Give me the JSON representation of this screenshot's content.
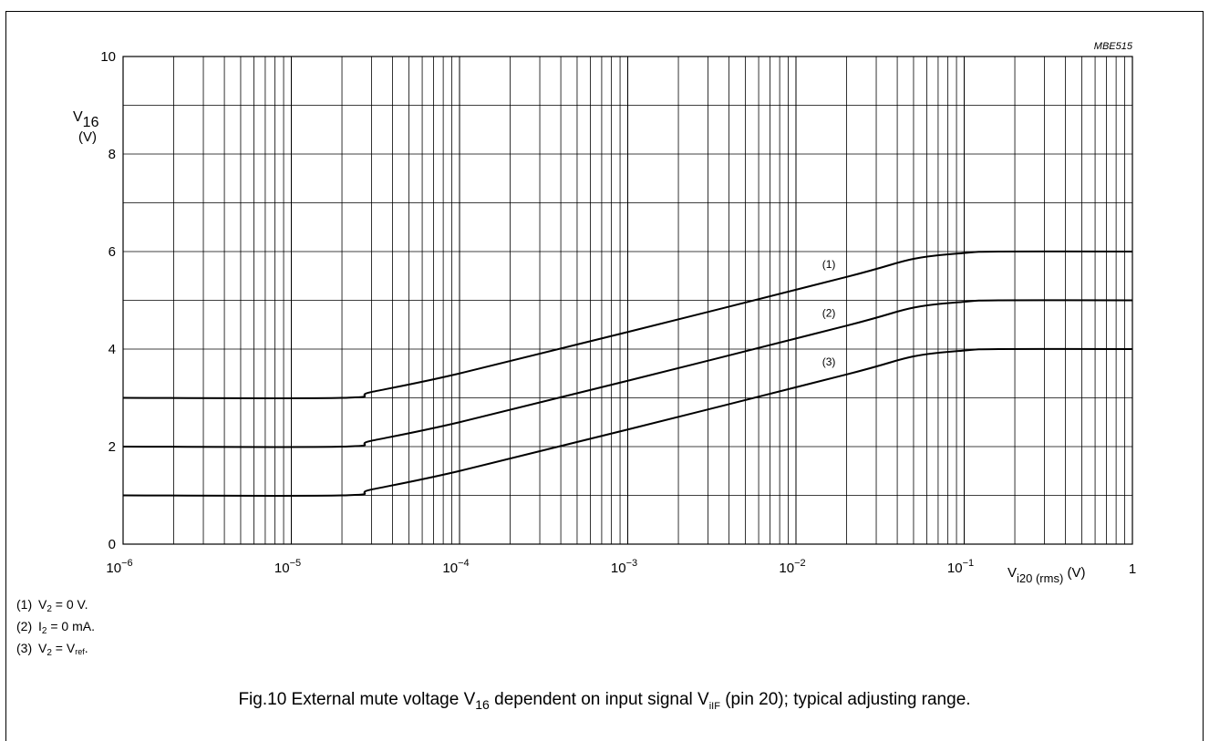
{
  "chart_data": {
    "type": "line",
    "figure_code": "MBE515",
    "x_scale": "log",
    "xlim": [
      1e-06,
      1
    ],
    "ylim": [
      0,
      10
    ],
    "grid": true,
    "x_ticks": [
      {
        "value": 1e-06,
        "base": "10",
        "exp": "−6"
      },
      {
        "value": 1e-05,
        "base": "10",
        "exp": "−5"
      },
      {
        "value": 0.0001,
        "base": "10",
        "exp": "−4"
      },
      {
        "value": 0.001,
        "base": "10",
        "exp": "−3"
      },
      {
        "value": 0.01,
        "base": "10",
        "exp": "−2"
      },
      {
        "value": 0.1,
        "base": "10",
        "exp": "−1"
      },
      {
        "value": 1,
        "base": "1",
        "exp": ""
      }
    ],
    "y_ticks": [
      0,
      2,
      4,
      6,
      8,
      10
    ],
    "ylabel": {
      "main": "V",
      "sub": "16",
      "unit": "(V)"
    },
    "xlabel": {
      "main": "V",
      "sub": "i20 (rms)",
      "unit": "(V)"
    },
    "series": [
      {
        "name": "(1)",
        "x": [
          1e-06,
          2e-05,
          3e-05,
          0.0001,
          0.001,
          0.02,
          0.05,
          0.1,
          0.16,
          1
        ],
        "y": [
          3,
          3,
          3.12,
          3.5,
          4.35,
          5.48,
          5.85,
          5.97,
          6,
          6
        ]
      },
      {
        "name": "(2)",
        "x": [
          1e-06,
          2e-05,
          3e-05,
          0.0001,
          0.001,
          0.02,
          0.05,
          0.1,
          0.16,
          1
        ],
        "y": [
          2,
          2,
          2.12,
          2.5,
          3.35,
          4.48,
          4.85,
          4.97,
          5,
          5
        ]
      },
      {
        "name": "(3)",
        "x": [
          1e-06,
          2e-05,
          3e-05,
          0.0001,
          0.001,
          0.02,
          0.05,
          0.1,
          0.16,
          1
        ],
        "y": [
          1,
          1,
          1.12,
          1.5,
          2.35,
          3.48,
          3.85,
          3.97,
          4,
          4
        ]
      }
    ],
    "series_label_x": 0.018
  },
  "notes": [
    {
      "num": "(1)",
      "a": "V",
      "a_sub": "2",
      "b": " = 0 V."
    },
    {
      "num": "(2)",
      "a": "I",
      "a_sub": "2",
      "b": " = 0 mA."
    },
    {
      "num": "(3)",
      "a": "V",
      "a_sub": "2",
      "b": " = V",
      "b_sub": "ref",
      "c": "."
    }
  ],
  "caption": {
    "p1": "Fig.10  External mute voltage V",
    "s1": "16",
    "p2": " dependent on input signal V",
    "s2": "iIF",
    "p3": " (pin 20); typical adjusting range."
  }
}
